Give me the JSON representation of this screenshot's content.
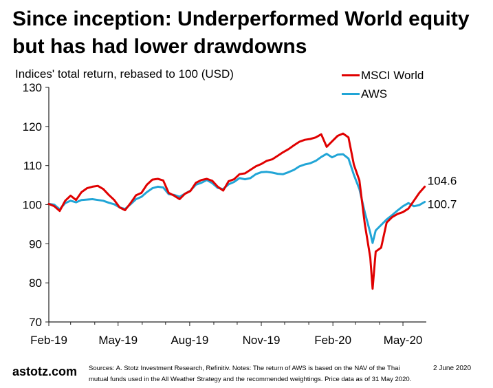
{
  "title": "Since inception: Underperformed World equity but has had lower drawdowns",
  "subtitle": "Indices' total return, rebased to 100 (USD)",
  "colors": {
    "msci": "#e00000",
    "aws": "#21a5d6",
    "axis": "#222222"
  },
  "footer": {
    "brand": "astotz.com",
    "note": "Sources: A. Stotz Investment Research, Refinitiv. Notes: The return of AWS is based on the NAV of the Thai mutual funds used in the All Weather Strategy and the recommended weightings. Price data as of 31 May 2020.",
    "date": "2 June 2020"
  },
  "chart_data": {
    "type": "line",
    "title": "Since inception: Underperformed World equity but has had lower drawdowns",
    "ylabel": "Indices' total return, rebased to 100 (USD)",
    "ylim": [
      70,
      130
    ],
    "yticks": [
      70,
      80,
      90,
      100,
      110,
      120,
      130
    ],
    "x_tick_labels": [
      "Feb-19",
      "May-19",
      "Aug-19",
      "Nov-19",
      "Feb-20",
      "May-20"
    ],
    "xlim": [
      "2019-02-01",
      "2020-05-31"
    ],
    "legend": "top-right",
    "grid": false,
    "series": [
      {
        "name": "MSCI World",
        "color": "#e00000",
        "end_label": "104.6",
        "x": [
          "2019-02-01",
          "2019-02-08",
          "2019-02-15",
          "2019-02-22",
          "2019-03-01",
          "2019-03-08",
          "2019-03-15",
          "2019-03-22",
          "2019-03-29",
          "2019-04-05",
          "2019-04-12",
          "2019-04-19",
          "2019-04-26",
          "2019-05-03",
          "2019-05-10",
          "2019-05-17",
          "2019-05-24",
          "2019-05-31",
          "2019-06-07",
          "2019-06-14",
          "2019-06-21",
          "2019-06-28",
          "2019-07-05",
          "2019-07-12",
          "2019-07-19",
          "2019-07-26",
          "2019-08-02",
          "2019-08-09",
          "2019-08-16",
          "2019-08-23",
          "2019-08-30",
          "2019-09-06",
          "2019-09-13",
          "2019-09-20",
          "2019-09-27",
          "2019-10-04",
          "2019-10-11",
          "2019-10-18",
          "2019-10-25",
          "2019-11-01",
          "2019-11-08",
          "2019-11-15",
          "2019-11-22",
          "2019-11-29",
          "2019-12-06",
          "2019-12-13",
          "2019-12-20",
          "2019-12-27",
          "2020-01-03",
          "2020-01-10",
          "2020-01-17",
          "2020-01-24",
          "2020-01-31",
          "2020-02-07",
          "2020-02-14",
          "2020-02-21",
          "2020-02-28",
          "2020-03-06",
          "2020-03-13",
          "2020-03-20",
          "2020-03-23",
          "2020-03-27",
          "2020-04-03",
          "2020-04-10",
          "2020-04-17",
          "2020-04-24",
          "2020-05-01",
          "2020-05-08",
          "2020-05-15",
          "2020-05-22",
          "2020-05-29"
        ],
        "values": [
          100.2,
          99.6,
          98.4,
          101.0,
          102.3,
          101.2,
          103.2,
          104.2,
          104.6,
          104.8,
          104.0,
          102.5,
          101.2,
          99.3,
          98.6,
          100.4,
          102.4,
          103.0,
          105.1,
          106.4,
          106.6,
          106.2,
          103.0,
          102.3,
          101.4,
          102.8,
          103.5,
          105.6,
          106.3,
          106.6,
          106.1,
          104.6,
          103.6,
          106.0,
          106.5,
          107.8,
          108.0,
          108.9,
          109.8,
          110.4,
          111.2,
          111.6,
          112.5,
          113.4,
          114.2,
          115.2,
          116.1,
          116.6,
          116.8,
          117.2,
          118.0,
          114.8,
          116.2,
          117.6,
          118.2,
          117.2,
          110.2,
          106.2,
          95.0,
          86.5,
          78.5,
          88.0,
          89.0,
          95.4,
          96.8,
          97.6,
          98.1,
          99.0,
          101.0,
          103.0,
          104.6
        ]
      },
      {
        "name": "AWS",
        "color": "#21a5d6",
        "end_label": "100.7",
        "x": [
          "2019-02-01",
          "2019-02-08",
          "2019-02-15",
          "2019-02-22",
          "2019-03-01",
          "2019-03-08",
          "2019-03-15",
          "2019-03-22",
          "2019-03-29",
          "2019-04-05",
          "2019-04-12",
          "2019-04-19",
          "2019-04-26",
          "2019-05-03",
          "2019-05-10",
          "2019-05-17",
          "2019-05-24",
          "2019-05-31",
          "2019-06-07",
          "2019-06-14",
          "2019-06-21",
          "2019-06-28",
          "2019-07-05",
          "2019-07-12",
          "2019-07-19",
          "2019-07-26",
          "2019-08-02",
          "2019-08-09",
          "2019-08-16",
          "2019-08-23",
          "2019-08-30",
          "2019-09-06",
          "2019-09-13",
          "2019-09-20",
          "2019-09-27",
          "2019-10-04",
          "2019-10-11",
          "2019-10-18",
          "2019-10-25",
          "2019-11-01",
          "2019-11-08",
          "2019-11-15",
          "2019-11-22",
          "2019-11-29",
          "2019-12-06",
          "2019-12-13",
          "2019-12-20",
          "2019-12-27",
          "2020-01-03",
          "2020-01-10",
          "2020-01-17",
          "2020-01-24",
          "2020-01-31",
          "2020-02-07",
          "2020-02-14",
          "2020-02-21",
          "2020-02-28",
          "2020-03-06",
          "2020-03-13",
          "2020-03-20",
          "2020-03-23",
          "2020-03-27",
          "2020-04-03",
          "2020-04-10",
          "2020-04-17",
          "2020-04-24",
          "2020-05-01",
          "2020-05-08",
          "2020-05-15",
          "2020-05-22",
          "2020-05-29"
        ],
        "values": [
          100.2,
          100.0,
          98.8,
          100.4,
          101.0,
          100.6,
          101.2,
          101.3,
          101.4,
          101.2,
          101.0,
          100.5,
          100.1,
          99.3,
          98.9,
          100.1,
          101.4,
          102.0,
          103.2,
          104.2,
          104.6,
          104.4,
          102.7,
          102.5,
          102.0,
          102.8,
          103.6,
          105.1,
          105.6,
          106.3,
          105.5,
          104.3,
          104.0,
          105.2,
          105.8,
          106.8,
          106.5,
          106.8,
          107.8,
          108.3,
          108.4,
          108.2,
          107.9,
          107.8,
          108.3,
          108.9,
          109.8,
          110.3,
          110.6,
          111.2,
          112.2,
          113.0,
          112.1,
          112.8,
          112.9,
          111.8,
          107.6,
          104.0,
          98.0,
          92.8,
          90.2,
          93.4,
          94.8,
          96.2,
          97.3,
          98.5,
          99.6,
          100.4,
          99.6,
          99.9,
          100.7
        ]
      }
    ]
  }
}
